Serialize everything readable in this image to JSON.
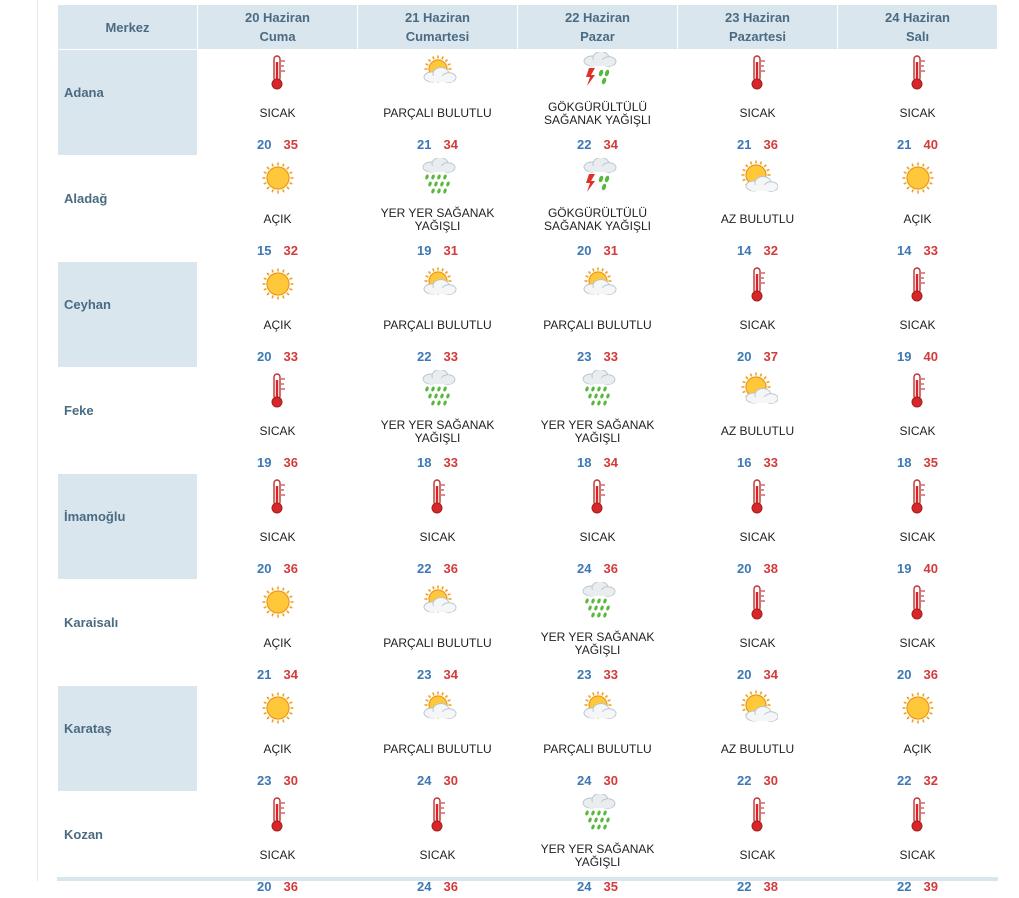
{
  "header": {
    "first_col": "Merkez",
    "days": [
      {
        "date": "20 Haziran",
        "weekday": "Cuma"
      },
      {
        "date": "21 Haziran",
        "weekday": "Cumartesi"
      },
      {
        "date": "22 Haziran",
        "weekday": "Pazar"
      },
      {
        "date": "23 Haziran",
        "weekday": "Pazartesi"
      },
      {
        "date": "24 Haziran",
        "weekday": "Salı"
      }
    ]
  },
  "cities": [
    {
      "name": "Adana",
      "days": [
        {
          "icon": "thermometer-icon",
          "desc": [
            "SICAK"
          ],
          "min": "20",
          "max": "35"
        },
        {
          "icon": "partly-cloudy-icon",
          "desc": [
            "PARÇALI BULUTLU"
          ],
          "min": "21",
          "max": "34"
        },
        {
          "icon": "thunderstorm-icon",
          "desc": [
            "GÖKGÜRÜLTÜLÜ",
            "SAĞANAK YAĞIŞLI"
          ],
          "min": "22",
          "max": "34"
        },
        {
          "icon": "thermometer-icon",
          "desc": [
            "SICAK"
          ],
          "min": "21",
          "max": "36"
        },
        {
          "icon": "thermometer-icon",
          "desc": [
            "SICAK"
          ],
          "min": "21",
          "max": "40"
        }
      ]
    },
    {
      "name": "Aladağ",
      "days": [
        {
          "icon": "sun-icon",
          "desc": [
            "AÇIK"
          ],
          "min": "15",
          "max": "32"
        },
        {
          "icon": "rain-shower-icon",
          "desc": [
            "YER YER SAĞANAK",
            "YAĞIŞLI"
          ],
          "min": "19",
          "max": "31"
        },
        {
          "icon": "thunderstorm-icon",
          "desc": [
            "GÖKGÜRÜLTÜLÜ",
            "SAĞANAK YAĞIŞLI"
          ],
          "min": "20",
          "max": "31"
        },
        {
          "icon": "mostly-sunny-icon",
          "desc": [
            "AZ BULUTLU"
          ],
          "min": "14",
          "max": "32"
        },
        {
          "icon": "sun-icon",
          "desc": [
            "AÇIK"
          ],
          "min": "14",
          "max": "33"
        }
      ]
    },
    {
      "name": "Ceyhan",
      "days": [
        {
          "icon": "sun-icon",
          "desc": [
            "AÇIK"
          ],
          "min": "20",
          "max": "33"
        },
        {
          "icon": "partly-cloudy-icon",
          "desc": [
            "PARÇALI BULUTLU"
          ],
          "min": "22",
          "max": "33"
        },
        {
          "icon": "partly-cloudy-icon",
          "desc": [
            "PARÇALI BULUTLU"
          ],
          "min": "23",
          "max": "33"
        },
        {
          "icon": "thermometer-icon",
          "desc": [
            "SICAK"
          ],
          "min": "20",
          "max": "37"
        },
        {
          "icon": "thermometer-icon",
          "desc": [
            "SICAK"
          ],
          "min": "19",
          "max": "40"
        }
      ]
    },
    {
      "name": "Feke",
      "days": [
        {
          "icon": "thermometer-icon",
          "desc": [
            "SICAK"
          ],
          "min": "19",
          "max": "36"
        },
        {
          "icon": "rain-shower-icon",
          "desc": [
            "YER YER SAĞANAK",
            "YAĞIŞLI"
          ],
          "min": "18",
          "max": "33"
        },
        {
          "icon": "rain-shower-icon",
          "desc": [
            "YER YER SAĞANAK",
            "YAĞIŞLI"
          ],
          "min": "18",
          "max": "34"
        },
        {
          "icon": "mostly-sunny-icon",
          "desc": [
            "AZ BULUTLU"
          ],
          "min": "16",
          "max": "33"
        },
        {
          "icon": "thermometer-icon",
          "desc": [
            "SICAK"
          ],
          "min": "18",
          "max": "35"
        }
      ]
    },
    {
      "name": "İmamoğlu",
      "days": [
        {
          "icon": "thermometer-icon",
          "desc": [
            "SICAK"
          ],
          "min": "20",
          "max": "36"
        },
        {
          "icon": "thermometer-icon",
          "desc": [
            "SICAK"
          ],
          "min": "22",
          "max": "36"
        },
        {
          "icon": "thermometer-icon",
          "desc": [
            "SICAK"
          ],
          "min": "24",
          "max": "36"
        },
        {
          "icon": "thermometer-icon",
          "desc": [
            "SICAK"
          ],
          "min": "20",
          "max": "38"
        },
        {
          "icon": "thermometer-icon",
          "desc": [
            "SICAK"
          ],
          "min": "19",
          "max": "40"
        }
      ]
    },
    {
      "name": "Karaisalı",
      "days": [
        {
          "icon": "sun-icon",
          "desc": [
            "AÇIK"
          ],
          "min": "21",
          "max": "34"
        },
        {
          "icon": "partly-cloudy-icon",
          "desc": [
            "PARÇALI BULUTLU"
          ],
          "min": "23",
          "max": "34"
        },
        {
          "icon": "rain-shower-icon",
          "desc": [
            "YER YER SAĞANAK",
            "YAĞIŞLI"
          ],
          "min": "23",
          "max": "33"
        },
        {
          "icon": "thermometer-icon",
          "desc": [
            "SICAK"
          ],
          "min": "20",
          "max": "34"
        },
        {
          "icon": "thermometer-icon",
          "desc": [
            "SICAK"
          ],
          "min": "20",
          "max": "36"
        }
      ]
    },
    {
      "name": "Karataş",
      "days": [
        {
          "icon": "sun-icon",
          "desc": [
            "AÇIK"
          ],
          "min": "23",
          "max": "30"
        },
        {
          "icon": "partly-cloudy-icon",
          "desc": [
            "PARÇALI BULUTLU"
          ],
          "min": "24",
          "max": "30"
        },
        {
          "icon": "partly-cloudy-icon",
          "desc": [
            "PARÇALI BULUTLU"
          ],
          "min": "24",
          "max": "30"
        },
        {
          "icon": "mostly-sunny-icon",
          "desc": [
            "AZ BULUTLU"
          ],
          "min": "22",
          "max": "30"
        },
        {
          "icon": "sun-icon",
          "desc": [
            "AÇIK"
          ],
          "min": "22",
          "max": "32"
        }
      ]
    },
    {
      "name": "Kozan",
      "days": [
        {
          "icon": "thermometer-icon",
          "desc": [
            "SICAK"
          ],
          "min": "20",
          "max": "36"
        },
        {
          "icon": "thermometer-icon",
          "desc": [
            "SICAK"
          ],
          "min": "24",
          "max": "36"
        },
        {
          "icon": "rain-shower-icon",
          "desc": [
            "YER YER SAĞANAK",
            "YAĞIŞLI"
          ],
          "min": "24",
          "max": "35"
        },
        {
          "icon": "thermometer-icon",
          "desc": [
            "SICAK"
          ],
          "min": "22",
          "max": "38"
        },
        {
          "icon": "thermometer-icon",
          "desc": [
            "SICAK"
          ],
          "min": "22",
          "max": "39"
        }
      ]
    }
  ],
  "colors": {
    "header_bg": "#dae6ee",
    "header_text": "#4a6b82",
    "min_temp": "#3d78b4",
    "max_temp": "#d33b3b"
  }
}
